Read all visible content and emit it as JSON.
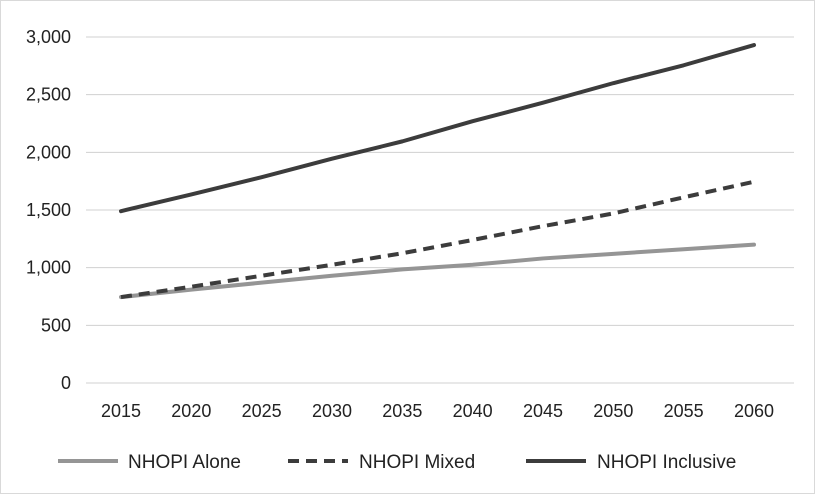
{
  "chart_data": {
    "type": "line",
    "x": [
      2015,
      2020,
      2025,
      2030,
      2035,
      2040,
      2045,
      2050,
      2055,
      2060
    ],
    "x_tick_labels": [
      "2015",
      "2020",
      "2025",
      "2030",
      "2035",
      "2040",
      "2045",
      "2050",
      "2055",
      "2060"
    ],
    "y_ticks": [
      0,
      500,
      1000,
      1500,
      2000,
      2500,
      3000
    ],
    "y_tick_labels": [
      "0",
      "500",
      "1,000",
      "1,500",
      "2,000",
      "2,500",
      "3,000"
    ],
    "ylim": [
      0,
      3000
    ],
    "grid": "horizontal",
    "legend_position": "bottom",
    "series": [
      {
        "name": "NHOPI Alone",
        "color": "#959595",
        "style": "solid",
        "values": [
          745,
          810,
          870,
          930,
          985,
          1025,
          1080,
          1120,
          1160,
          1200
        ]
      },
      {
        "name": "NHOPI Mixed",
        "color": "#3c3c3c",
        "style": "dashed",
        "values": [
          745,
          835,
          930,
          1025,
          1125,
          1240,
          1360,
          1470,
          1610,
          1745
        ]
      },
      {
        "name": "NHOPI Inclusive",
        "color": "#3c3c3c",
        "style": "solid",
        "values": [
          1490,
          1635,
          1785,
          1945,
          2095,
          2270,
          2430,
          2600,
          2755,
          2930
        ]
      }
    ]
  }
}
